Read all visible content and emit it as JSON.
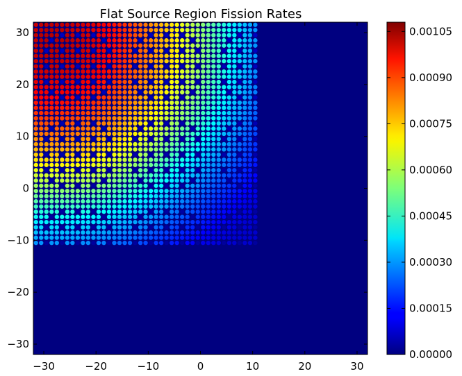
{
  "chart_data": {
    "type": "scatter",
    "title": "Flat Source Region Fission Rates",
    "xlabel": "",
    "ylabel": "",
    "xlim": [
      -32,
      32
    ],
    "ylim": [
      -32,
      32
    ],
    "x_ticks": [
      -30,
      -20,
      -10,
      0,
      10,
      20,
      30
    ],
    "y_ticks": [
      -30,
      -20,
      -10,
      0,
      10,
      20,
      30
    ],
    "x_tick_labels": [
      "−30",
      "−20",
      "−10",
      "0",
      "10",
      "20",
      "30"
    ],
    "y_tick_labels": [
      "−30",
      "−20",
      "−10",
      "0",
      "10",
      "20",
      "30"
    ],
    "background_color": "#000080",
    "colormap": "jet",
    "colorbar": {
      "range": [
        0,
        0.00108
      ],
      "ticks": [
        0.0,
        0.00015,
        0.0003,
        0.00045,
        0.0006,
        0.00075,
        0.0009,
        0.00105
      ],
      "tick_labels": [
        "0.00000",
        "0.00015",
        "0.00030",
        "0.00045",
        "0.00060",
        "0.00075",
        "0.00090",
        "0.00105"
      ]
    },
    "points": {
      "x_start": -31.5,
      "x_end": 10.5,
      "y_start": -10.5,
      "y_end": 31.5,
      "step": 1.0,
      "peak_value": 0.00102,
      "peak_location": [
        -28,
        28
      ],
      "low_value": 8e-05,
      "low_location": [
        10,
        -10
      ],
      "guide_tube_value": 3e-05
    },
    "grid": false,
    "legend": "none"
  }
}
